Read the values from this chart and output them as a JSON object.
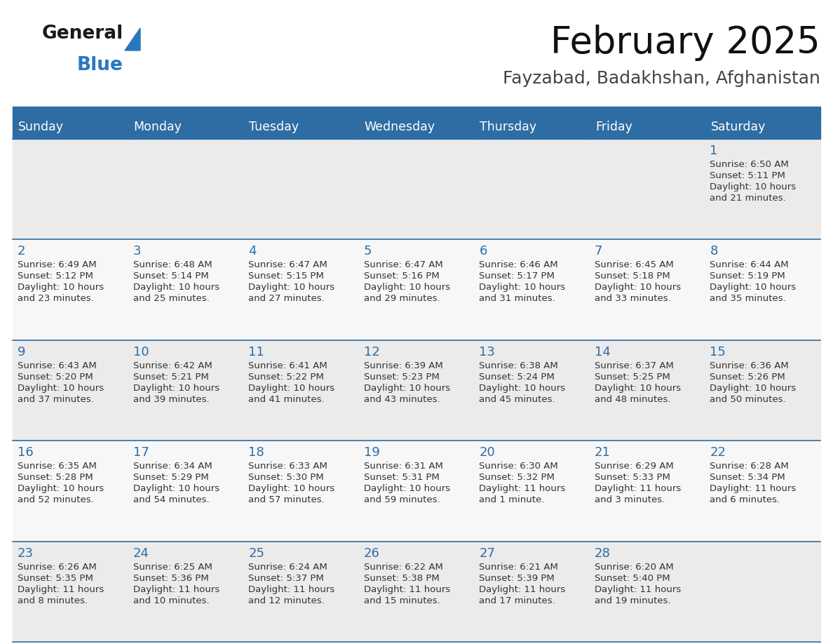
{
  "title": "February 2025",
  "subtitle": "Fayzabad, Badakhshan, Afghanistan",
  "header_color": "#2E6DA4",
  "header_text_color": "#FFFFFF",
  "day_names": [
    "Sunday",
    "Monday",
    "Tuesday",
    "Wednesday",
    "Thursday",
    "Friday",
    "Saturday"
  ],
  "background_color": "#FFFFFF",
  "row_bg_even": "#EBEBEB",
  "row_bg_odd": "#F7F7F7",
  "separator_color": "#2E6DA4",
  "date_color": "#2E6DA4",
  "info_color": "#333333",
  "logo_general_color": "#1a1a1a",
  "logo_blue_color": "#2878C0",
  "calendar": [
    [
      null,
      null,
      null,
      null,
      null,
      null,
      {
        "day": "1",
        "sunrise": "6:50 AM",
        "sunset": "5:11 PM",
        "daylight_l1": "10 hours",
        "daylight_l2": "and 21 minutes."
      }
    ],
    [
      {
        "day": "2",
        "sunrise": "6:49 AM",
        "sunset": "5:12 PM",
        "daylight_l1": "10 hours",
        "daylight_l2": "and 23 minutes."
      },
      {
        "day": "3",
        "sunrise": "6:48 AM",
        "sunset": "5:14 PM",
        "daylight_l1": "10 hours",
        "daylight_l2": "and 25 minutes."
      },
      {
        "day": "4",
        "sunrise": "6:47 AM",
        "sunset": "5:15 PM",
        "daylight_l1": "10 hours",
        "daylight_l2": "and 27 minutes."
      },
      {
        "day": "5",
        "sunrise": "6:47 AM",
        "sunset": "5:16 PM",
        "daylight_l1": "10 hours",
        "daylight_l2": "and 29 minutes."
      },
      {
        "day": "6",
        "sunrise": "6:46 AM",
        "sunset": "5:17 PM",
        "daylight_l1": "10 hours",
        "daylight_l2": "and 31 minutes."
      },
      {
        "day": "7",
        "sunrise": "6:45 AM",
        "sunset": "5:18 PM",
        "daylight_l1": "10 hours",
        "daylight_l2": "and 33 minutes."
      },
      {
        "day": "8",
        "sunrise": "6:44 AM",
        "sunset": "5:19 PM",
        "daylight_l1": "10 hours",
        "daylight_l2": "and 35 minutes."
      }
    ],
    [
      {
        "day": "9",
        "sunrise": "6:43 AM",
        "sunset": "5:20 PM",
        "daylight_l1": "10 hours",
        "daylight_l2": "and 37 minutes."
      },
      {
        "day": "10",
        "sunrise": "6:42 AM",
        "sunset": "5:21 PM",
        "daylight_l1": "10 hours",
        "daylight_l2": "and 39 minutes."
      },
      {
        "day": "11",
        "sunrise": "6:41 AM",
        "sunset": "5:22 PM",
        "daylight_l1": "10 hours",
        "daylight_l2": "and 41 minutes."
      },
      {
        "day": "12",
        "sunrise": "6:39 AM",
        "sunset": "5:23 PM",
        "daylight_l1": "10 hours",
        "daylight_l2": "and 43 minutes."
      },
      {
        "day": "13",
        "sunrise": "6:38 AM",
        "sunset": "5:24 PM",
        "daylight_l1": "10 hours",
        "daylight_l2": "and 45 minutes."
      },
      {
        "day": "14",
        "sunrise": "6:37 AM",
        "sunset": "5:25 PM",
        "daylight_l1": "10 hours",
        "daylight_l2": "and 48 minutes."
      },
      {
        "day": "15",
        "sunrise": "6:36 AM",
        "sunset": "5:26 PM",
        "daylight_l1": "10 hours",
        "daylight_l2": "and 50 minutes."
      }
    ],
    [
      {
        "day": "16",
        "sunrise": "6:35 AM",
        "sunset": "5:28 PM",
        "daylight_l1": "10 hours",
        "daylight_l2": "and 52 minutes."
      },
      {
        "day": "17",
        "sunrise": "6:34 AM",
        "sunset": "5:29 PM",
        "daylight_l1": "10 hours",
        "daylight_l2": "and 54 minutes."
      },
      {
        "day": "18",
        "sunrise": "6:33 AM",
        "sunset": "5:30 PM",
        "daylight_l1": "10 hours",
        "daylight_l2": "and 57 minutes."
      },
      {
        "day": "19",
        "sunrise": "6:31 AM",
        "sunset": "5:31 PM",
        "daylight_l1": "10 hours",
        "daylight_l2": "and 59 minutes."
      },
      {
        "day": "20",
        "sunrise": "6:30 AM",
        "sunset": "5:32 PM",
        "daylight_l1": "11 hours",
        "daylight_l2": "and 1 minute."
      },
      {
        "day": "21",
        "sunrise": "6:29 AM",
        "sunset": "5:33 PM",
        "daylight_l1": "11 hours",
        "daylight_l2": "and 3 minutes."
      },
      {
        "day": "22",
        "sunrise": "6:28 AM",
        "sunset": "5:34 PM",
        "daylight_l1": "11 hours",
        "daylight_l2": "and 6 minutes."
      }
    ],
    [
      {
        "day": "23",
        "sunrise": "6:26 AM",
        "sunset": "5:35 PM",
        "daylight_l1": "11 hours",
        "daylight_l2": "and 8 minutes."
      },
      {
        "day": "24",
        "sunrise": "6:25 AM",
        "sunset": "5:36 PM",
        "daylight_l1": "11 hours",
        "daylight_l2": "and 10 minutes."
      },
      {
        "day": "25",
        "sunrise": "6:24 AM",
        "sunset": "5:37 PM",
        "daylight_l1": "11 hours",
        "daylight_l2": "and 12 minutes."
      },
      {
        "day": "26",
        "sunrise": "6:22 AM",
        "sunset": "5:38 PM",
        "daylight_l1": "11 hours",
        "daylight_l2": "and 15 minutes."
      },
      {
        "day": "27",
        "sunrise": "6:21 AM",
        "sunset": "5:39 PM",
        "daylight_l1": "11 hours",
        "daylight_l2": "and 17 minutes."
      },
      {
        "day": "28",
        "sunrise": "6:20 AM",
        "sunset": "5:40 PM",
        "daylight_l1": "11 hours",
        "daylight_l2": "and 19 minutes."
      },
      null
    ]
  ]
}
